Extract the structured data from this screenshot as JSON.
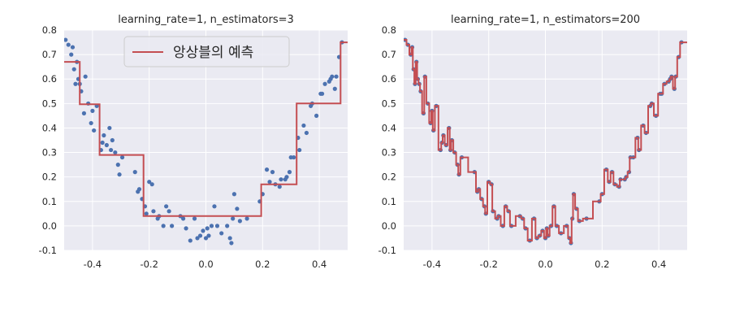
{
  "chart_data": [
    {
      "type": "scatter+step",
      "title": "learning_rate=1, n_estimators=3",
      "xlim": [
        -0.5,
        0.5
      ],
      "ylim": [
        -0.1,
        0.8
      ],
      "xticks": [
        "-0.4",
        "-0.2",
        "0.0",
        "0.2",
        "0.4"
      ],
      "yticks": [
        "-0.1",
        "0.0",
        "0.1",
        "0.2",
        "0.3",
        "0.4",
        "0.5",
        "0.6",
        "0.7",
        "0.8"
      ],
      "grid": true,
      "legend": {
        "placement": "top-center",
        "entries": [
          "앙상블의 예측"
        ]
      },
      "series": [
        {
          "kind": "scatter",
          "color": "#4c72b0",
          "points": [
            [
              -0.495,
              0.76
            ],
            [
              -0.485,
              0.74
            ],
            [
              -0.475,
              0.7
            ],
            [
              -0.47,
              0.73
            ],
            [
              -0.465,
              0.64
            ],
            [
              -0.46,
              0.58
            ],
            [
              -0.455,
              0.67
            ],
            [
              -0.45,
              0.6
            ],
            [
              -0.445,
              0.58
            ],
            [
              -0.44,
              0.55
            ],
            [
              -0.43,
              0.46
            ],
            [
              -0.425,
              0.61
            ],
            [
              -0.415,
              0.5
            ],
            [
              -0.405,
              0.42
            ],
            [
              -0.4,
              0.47
            ],
            [
              -0.395,
              0.39
            ],
            [
              -0.385,
              0.49
            ],
            [
              -0.37,
              0.31
            ],
            [
              -0.365,
              0.34
            ],
            [
              -0.36,
              0.37
            ],
            [
              -0.35,
              0.33
            ],
            [
              -0.34,
              0.4
            ],
            [
              -0.335,
              0.31
            ],
            [
              -0.33,
              0.35
            ],
            [
              -0.32,
              0.3
            ],
            [
              -0.31,
              0.25
            ],
            [
              -0.305,
              0.21
            ],
            [
              -0.295,
              0.28
            ],
            [
              -0.25,
              0.22
            ],
            [
              -0.24,
              0.14
            ],
            [
              -0.235,
              0.15
            ],
            [
              -0.225,
              0.11
            ],
            [
              -0.215,
              0.08
            ],
            [
              -0.21,
              0.05
            ],
            [
              -0.2,
              0.18
            ],
            [
              -0.19,
              0.17
            ],
            [
              -0.185,
              0.06
            ],
            [
              -0.17,
              0.03
            ],
            [
              -0.165,
              0.04
            ],
            [
              -0.15,
              0.0
            ],
            [
              -0.14,
              0.08
            ],
            [
              -0.13,
              0.06
            ],
            [
              -0.12,
              0.0
            ],
            [
              -0.09,
              0.04
            ],
            [
              -0.08,
              0.03
            ],
            [
              -0.07,
              -0.01
            ],
            [
              -0.055,
              -0.06
            ],
            [
              -0.04,
              0.03
            ],
            [
              -0.03,
              -0.05
            ],
            [
              -0.02,
              -0.04
            ],
            [
              -0.01,
              -0.02
            ],
            [
              0.0,
              -0.05
            ],
            [
              0.005,
              -0.01
            ],
            [
              0.01,
              -0.04
            ],
            [
              0.02,
              0.0
            ],
            [
              0.03,
              0.08
            ],
            [
              0.04,
              0.0
            ],
            [
              0.055,
              -0.03
            ],
            [
              0.075,
              0.0
            ],
            [
              0.085,
              -0.05
            ],
            [
              0.09,
              -0.07
            ],
            [
              0.095,
              0.03
            ],
            [
              0.1,
              0.13
            ],
            [
              0.11,
              0.07
            ],
            [
              0.12,
              0.02
            ],
            [
              0.145,
              0.03
            ],
            [
              0.19,
              0.1
            ],
            [
              0.2,
              0.13
            ],
            [
              0.215,
              0.23
            ],
            [
              0.225,
              0.18
            ],
            [
              0.235,
              0.22
            ],
            [
              0.245,
              0.17
            ],
            [
              0.26,
              0.16
            ],
            [
              0.265,
              0.19
            ],
            [
              0.28,
              0.19
            ],
            [
              0.285,
              0.2
            ],
            [
              0.295,
              0.22
            ],
            [
              0.3,
              0.28
            ],
            [
              0.31,
              0.28
            ],
            [
              0.325,
              0.36
            ],
            [
              0.33,
              0.31
            ],
            [
              0.345,
              0.41
            ],
            [
              0.355,
              0.38
            ],
            [
              0.37,
              0.49
            ],
            [
              0.375,
              0.5
            ],
            [
              0.39,
              0.45
            ],
            [
              0.405,
              0.54
            ],
            [
              0.41,
              0.54
            ],
            [
              0.42,
              0.58
            ],
            [
              0.435,
              0.59
            ],
            [
              0.44,
              0.6
            ],
            [
              0.445,
              0.61
            ],
            [
              0.455,
              0.56
            ],
            [
              0.46,
              0.61
            ],
            [
              0.47,
              0.69
            ],
            [
              0.48,
              0.75
            ]
          ]
        },
        {
          "kind": "step",
          "name": "앙상블의 예측",
          "color": "#c44e52",
          "points": [
            [
              -0.5,
              0.67
            ],
            [
              -0.445,
              0.67
            ],
            [
              -0.445,
              0.497
            ],
            [
              -0.375,
              0.497
            ],
            [
              -0.375,
              0.29
            ],
            [
              -0.22,
              0.29
            ],
            [
              -0.22,
              0.04
            ],
            [
              0.195,
              0.04
            ],
            [
              0.195,
              0.17
            ],
            [
              0.32,
              0.17
            ],
            [
              0.32,
              0.5
            ],
            [
              0.475,
              0.5
            ],
            [
              0.475,
              0.75
            ],
            [
              0.5,
              0.75
            ]
          ]
        }
      ]
    },
    {
      "type": "scatter+step",
      "title": "learning_rate=1, n_estimators=200",
      "xlim": [
        -0.5,
        0.5
      ],
      "ylim": [
        -0.1,
        0.8
      ],
      "xticks": [
        "-0.4",
        "-0.2",
        "0.0",
        "0.2",
        "0.4"
      ],
      "yticks": [
        "-0.1",
        "0.0",
        "0.1",
        "0.2",
        "0.3",
        "0.4",
        "0.5",
        "0.6",
        "0.7",
        "0.8"
      ],
      "grid": true,
      "series": [
        {
          "kind": "scatter",
          "color": "#4c72b0",
          "points": [
            [
              -0.495,
              0.76
            ],
            [
              -0.485,
              0.74
            ],
            [
              -0.475,
              0.7
            ],
            [
              -0.47,
              0.73
            ],
            [
              -0.465,
              0.64
            ],
            [
              -0.46,
              0.58
            ],
            [
              -0.455,
              0.67
            ],
            [
              -0.45,
              0.6
            ],
            [
              -0.445,
              0.58
            ],
            [
              -0.44,
              0.55
            ],
            [
              -0.43,
              0.46
            ],
            [
              -0.425,
              0.61
            ],
            [
              -0.415,
              0.5
            ],
            [
              -0.405,
              0.42
            ],
            [
              -0.4,
              0.47
            ],
            [
              -0.395,
              0.39
            ],
            [
              -0.385,
              0.49
            ],
            [
              -0.37,
              0.31
            ],
            [
              -0.365,
              0.34
            ],
            [
              -0.36,
              0.37
            ],
            [
              -0.35,
              0.33
            ],
            [
              -0.34,
              0.4
            ],
            [
              -0.335,
              0.31
            ],
            [
              -0.33,
              0.35
            ],
            [
              -0.32,
              0.3
            ],
            [
              -0.31,
              0.25
            ],
            [
              -0.305,
              0.21
            ],
            [
              -0.295,
              0.28
            ],
            [
              -0.25,
              0.22
            ],
            [
              -0.24,
              0.14
            ],
            [
              -0.235,
              0.15
            ],
            [
              -0.225,
              0.11
            ],
            [
              -0.215,
              0.08
            ],
            [
              -0.21,
              0.05
            ],
            [
              -0.2,
              0.18
            ],
            [
              -0.19,
              0.17
            ],
            [
              -0.185,
              0.06
            ],
            [
              -0.17,
              0.03
            ],
            [
              -0.165,
              0.04
            ],
            [
              -0.15,
              0.0
            ],
            [
              -0.14,
              0.08
            ],
            [
              -0.13,
              0.06
            ],
            [
              -0.12,
              0.0
            ],
            [
              -0.09,
              0.04
            ],
            [
              -0.08,
              0.03
            ],
            [
              -0.07,
              -0.01
            ],
            [
              -0.055,
              -0.06
            ],
            [
              -0.04,
              0.03
            ],
            [
              -0.03,
              -0.05
            ],
            [
              -0.02,
              -0.04
            ],
            [
              -0.01,
              -0.02
            ],
            [
              0.0,
              -0.05
            ],
            [
              0.005,
              -0.01
            ],
            [
              0.01,
              -0.04
            ],
            [
              0.02,
              0.0
            ],
            [
              0.03,
              0.08
            ],
            [
              0.04,
              0.0
            ],
            [
              0.055,
              -0.03
            ],
            [
              0.075,
              0.0
            ],
            [
              0.085,
              -0.05
            ],
            [
              0.09,
              -0.07
            ],
            [
              0.095,
              0.03
            ],
            [
              0.1,
              0.13
            ],
            [
              0.11,
              0.07
            ],
            [
              0.12,
              0.02
            ],
            [
              0.145,
              0.03
            ],
            [
              0.19,
              0.1
            ],
            [
              0.2,
              0.13
            ],
            [
              0.215,
              0.23
            ],
            [
              0.225,
              0.18
            ],
            [
              0.235,
              0.22
            ],
            [
              0.245,
              0.17
            ],
            [
              0.26,
              0.16
            ],
            [
              0.265,
              0.19
            ],
            [
              0.28,
              0.19
            ],
            [
              0.285,
              0.2
            ],
            [
              0.295,
              0.22
            ],
            [
              0.3,
              0.28
            ],
            [
              0.31,
              0.28
            ],
            [
              0.325,
              0.36
            ],
            [
              0.33,
              0.31
            ],
            [
              0.345,
              0.41
            ],
            [
              0.355,
              0.38
            ],
            [
              0.37,
              0.49
            ],
            [
              0.375,
              0.5
            ],
            [
              0.39,
              0.45
            ],
            [
              0.405,
              0.54
            ],
            [
              0.41,
              0.54
            ],
            [
              0.42,
              0.58
            ],
            [
              0.435,
              0.59
            ],
            [
              0.44,
              0.6
            ],
            [
              0.445,
              0.61
            ],
            [
              0.455,
              0.56
            ],
            [
              0.46,
              0.61
            ],
            [
              0.47,
              0.69
            ],
            [
              0.48,
              0.75
            ]
          ]
        },
        {
          "kind": "step",
          "name": "앙상블의 예측",
          "color": "#c44e52",
          "fit_to_points": true
        }
      ]
    }
  ]
}
